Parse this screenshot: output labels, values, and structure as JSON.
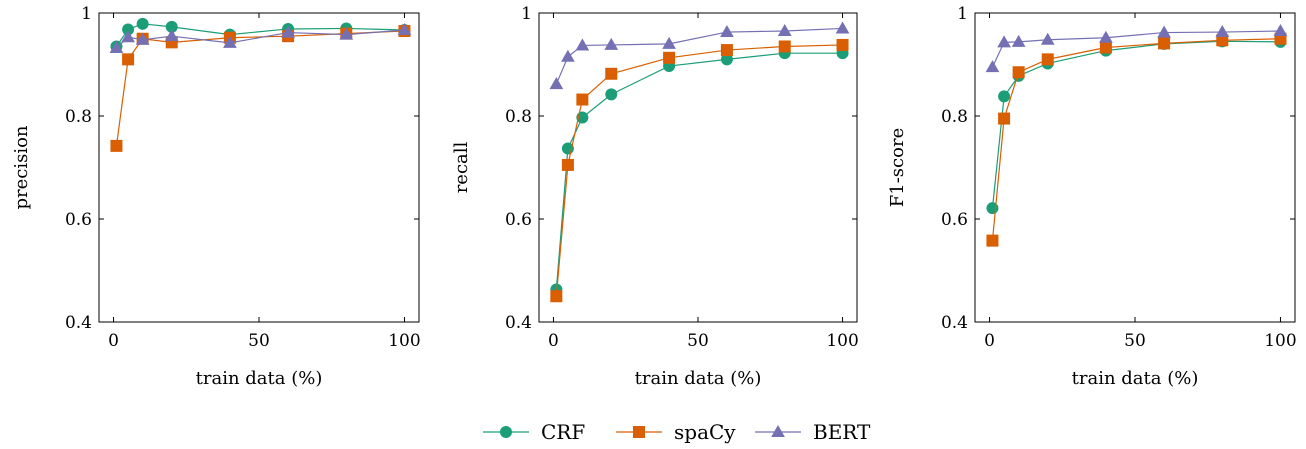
{
  "legend": {
    "position": "bottom-center",
    "entries": [
      {
        "name": "CRF",
        "marker": "circle",
        "color": "#1b9e77"
      },
      {
        "name": "spaCy",
        "marker": "square",
        "color": "#d95f02"
      },
      {
        "name": "BERT",
        "marker": "triangle",
        "color": "#7570b3"
      }
    ]
  },
  "chart_data": [
    {
      "type": "line",
      "title": "",
      "xlabel": "train data (%)",
      "ylabel": "precision",
      "xlim": [
        -5,
        105
      ],
      "ylim": [
        0.4,
        1.0
      ],
      "xticks": [
        0,
        50,
        100
      ],
      "yticks": [
        0.4,
        0.6,
        0.8,
        1.0
      ],
      "ytick_labels": [
        "0.4",
        "0.6",
        "0.8",
        "1"
      ],
      "grid": false,
      "x": [
        1,
        5,
        10,
        20,
        40,
        60,
        80,
        100
      ],
      "series": [
        {
          "name": "CRF",
          "values": [
            0.935,
            0.968,
            0.979,
            0.973,
            0.958,
            0.969,
            0.97,
            0.967
          ]
        },
        {
          "name": "spaCy",
          "values": [
            0.742,
            0.91,
            0.95,
            0.943,
            0.952,
            0.955,
            0.96,
            0.965
          ]
        },
        {
          "name": "BERT",
          "values": [
            0.932,
            0.953,
            0.948,
            0.955,
            0.942,
            0.962,
            0.958,
            0.967
          ]
        }
      ]
    },
    {
      "type": "line",
      "title": "",
      "xlabel": "train data (%)",
      "ylabel": "recall",
      "xlim": [
        -5,
        105
      ],
      "ylim": [
        0.4,
        1.0
      ],
      "xticks": [
        0,
        50,
        100
      ],
      "yticks": [
        0.4,
        0.6,
        0.8,
        1.0
      ],
      "ytick_labels": [
        "0.4",
        "0.6",
        "0.8",
        "1"
      ],
      "grid": false,
      "x": [
        1,
        5,
        10,
        20,
        40,
        60,
        80,
        100
      ],
      "series": [
        {
          "name": "CRF",
          "values": [
            0.463,
            0.737,
            0.797,
            0.842,
            0.897,
            0.91,
            0.922,
            0.922
          ]
        },
        {
          "name": "spaCy",
          "values": [
            0.45,
            0.705,
            0.832,
            0.882,
            0.913,
            0.928,
            0.935,
            0.938
          ]
        },
        {
          "name": "BERT",
          "values": [
            0.862,
            0.915,
            0.937,
            0.938,
            0.94,
            0.963,
            0.965,
            0.97
          ]
        }
      ]
    },
    {
      "type": "line",
      "title": "",
      "xlabel": "train data (%)",
      "ylabel": "F1-score",
      "xlim": [
        -5,
        105
      ],
      "ylim": [
        0.4,
        1.0
      ],
      "xticks": [
        0,
        50,
        100
      ],
      "yticks": [
        0.4,
        0.6,
        0.8,
        1.0
      ],
      "ytick_labels": [
        "0.4",
        "0.6",
        "0.8",
        "1"
      ],
      "grid": false,
      "x": [
        1,
        5,
        10,
        20,
        40,
        60,
        80,
        100
      ],
      "series": [
        {
          "name": "CRF",
          "values": [
            0.621,
            0.838,
            0.878,
            0.902,
            0.927,
            0.94,
            0.945,
            0.944
          ]
        },
        {
          "name": "spaCy",
          "values": [
            0.558,
            0.795,
            0.885,
            0.91,
            0.933,
            0.941,
            0.947,
            0.95
          ]
        },
        {
          "name": "BERT",
          "values": [
            0.895,
            0.943,
            0.944,
            0.948,
            0.952,
            0.962,
            0.963,
            0.965
          ]
        }
      ]
    }
  ]
}
